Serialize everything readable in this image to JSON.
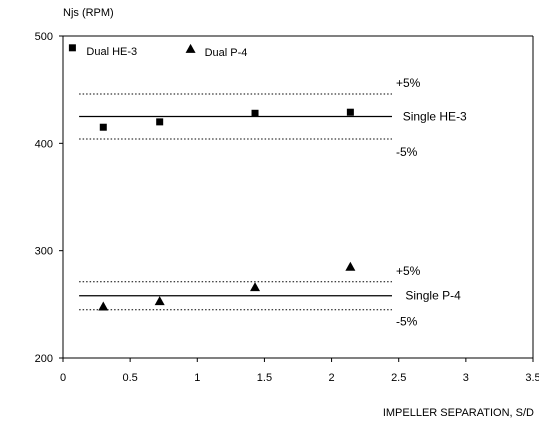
{
  "chart_data": {
    "type": "scatter",
    "title": "",
    "ylabel": "Njs (RPM)",
    "xlabel": "IMPELLER SEPARATION, S/D",
    "xlim": [
      0,
      3.5
    ],
    "ylim": [
      200,
      500
    ],
    "x_ticks": [
      "0",
      "0.5",
      "1",
      "1.5",
      "2",
      "2.5",
      "3",
      "3.5"
    ],
    "y_ticks": [
      "200",
      "300",
      "400",
      "500"
    ],
    "series": [
      {
        "name": "Dual HE-3",
        "marker": "square",
        "points": [
          {
            "x": 0.3,
            "y": 415
          },
          {
            "x": 0.72,
            "y": 420
          },
          {
            "x": 1.43,
            "y": 428
          },
          {
            "x": 2.14,
            "y": 429
          }
        ]
      },
      {
        "name": "Dual P-4",
        "marker": "triangle",
        "points": [
          {
            "x": 0.3,
            "y": 248
          },
          {
            "x": 0.72,
            "y": 253
          },
          {
            "x": 1.43,
            "y": 266
          },
          {
            "x": 2.14,
            "y": 285
          }
        ]
      }
    ],
    "reference_lines": [
      {
        "name": "Single HE-3",
        "y": 425,
        "x_range": [
          0.12,
          2.45
        ],
        "style": "solid"
      },
      {
        "name": "+5%",
        "y": 446,
        "x_range": [
          0.12,
          2.45
        ],
        "style": "dotted"
      },
      {
        "name": "-5%",
        "y": 404,
        "x_range": [
          0.12,
          2.45
        ],
        "style": "dotted"
      },
      {
        "name": "Single P-4",
        "y": 258,
        "x_range": [
          0.12,
          2.45
        ],
        "style": "solid"
      },
      {
        "name": "+5%",
        "y": 271,
        "x_range": [
          0.12,
          2.45
        ],
        "style": "dotted"
      },
      {
        "name": "-5%",
        "y": 245,
        "x_range": [
          0.12,
          2.45
        ],
        "style": "dotted"
      }
    ],
    "annotations": [
      {
        "text": "+5%",
        "x": 2.45,
        "y": 456
      },
      {
        "text": "Single HE-3",
        "x": 2.5,
        "y": 425
      },
      {
        "text": "-5%",
        "x": 2.45,
        "y": 392
      },
      {
        "text": "+5%",
        "x": 2.45,
        "y": 281
      },
      {
        "text": "Single P-4",
        "x": 2.52,
        "y": 258
      },
      {
        "text": "-5%",
        "x": 2.45,
        "y": 234
      }
    ],
    "legend": {
      "placement": "top-left",
      "items": [
        {
          "label": "Dual HE-3",
          "marker": "square",
          "x": 0.07,
          "y": 489
        },
        {
          "label": "Dual P-4",
          "marker": "triangle",
          "x": 0.95,
          "y": 488
        }
      ]
    },
    "grid": false
  }
}
